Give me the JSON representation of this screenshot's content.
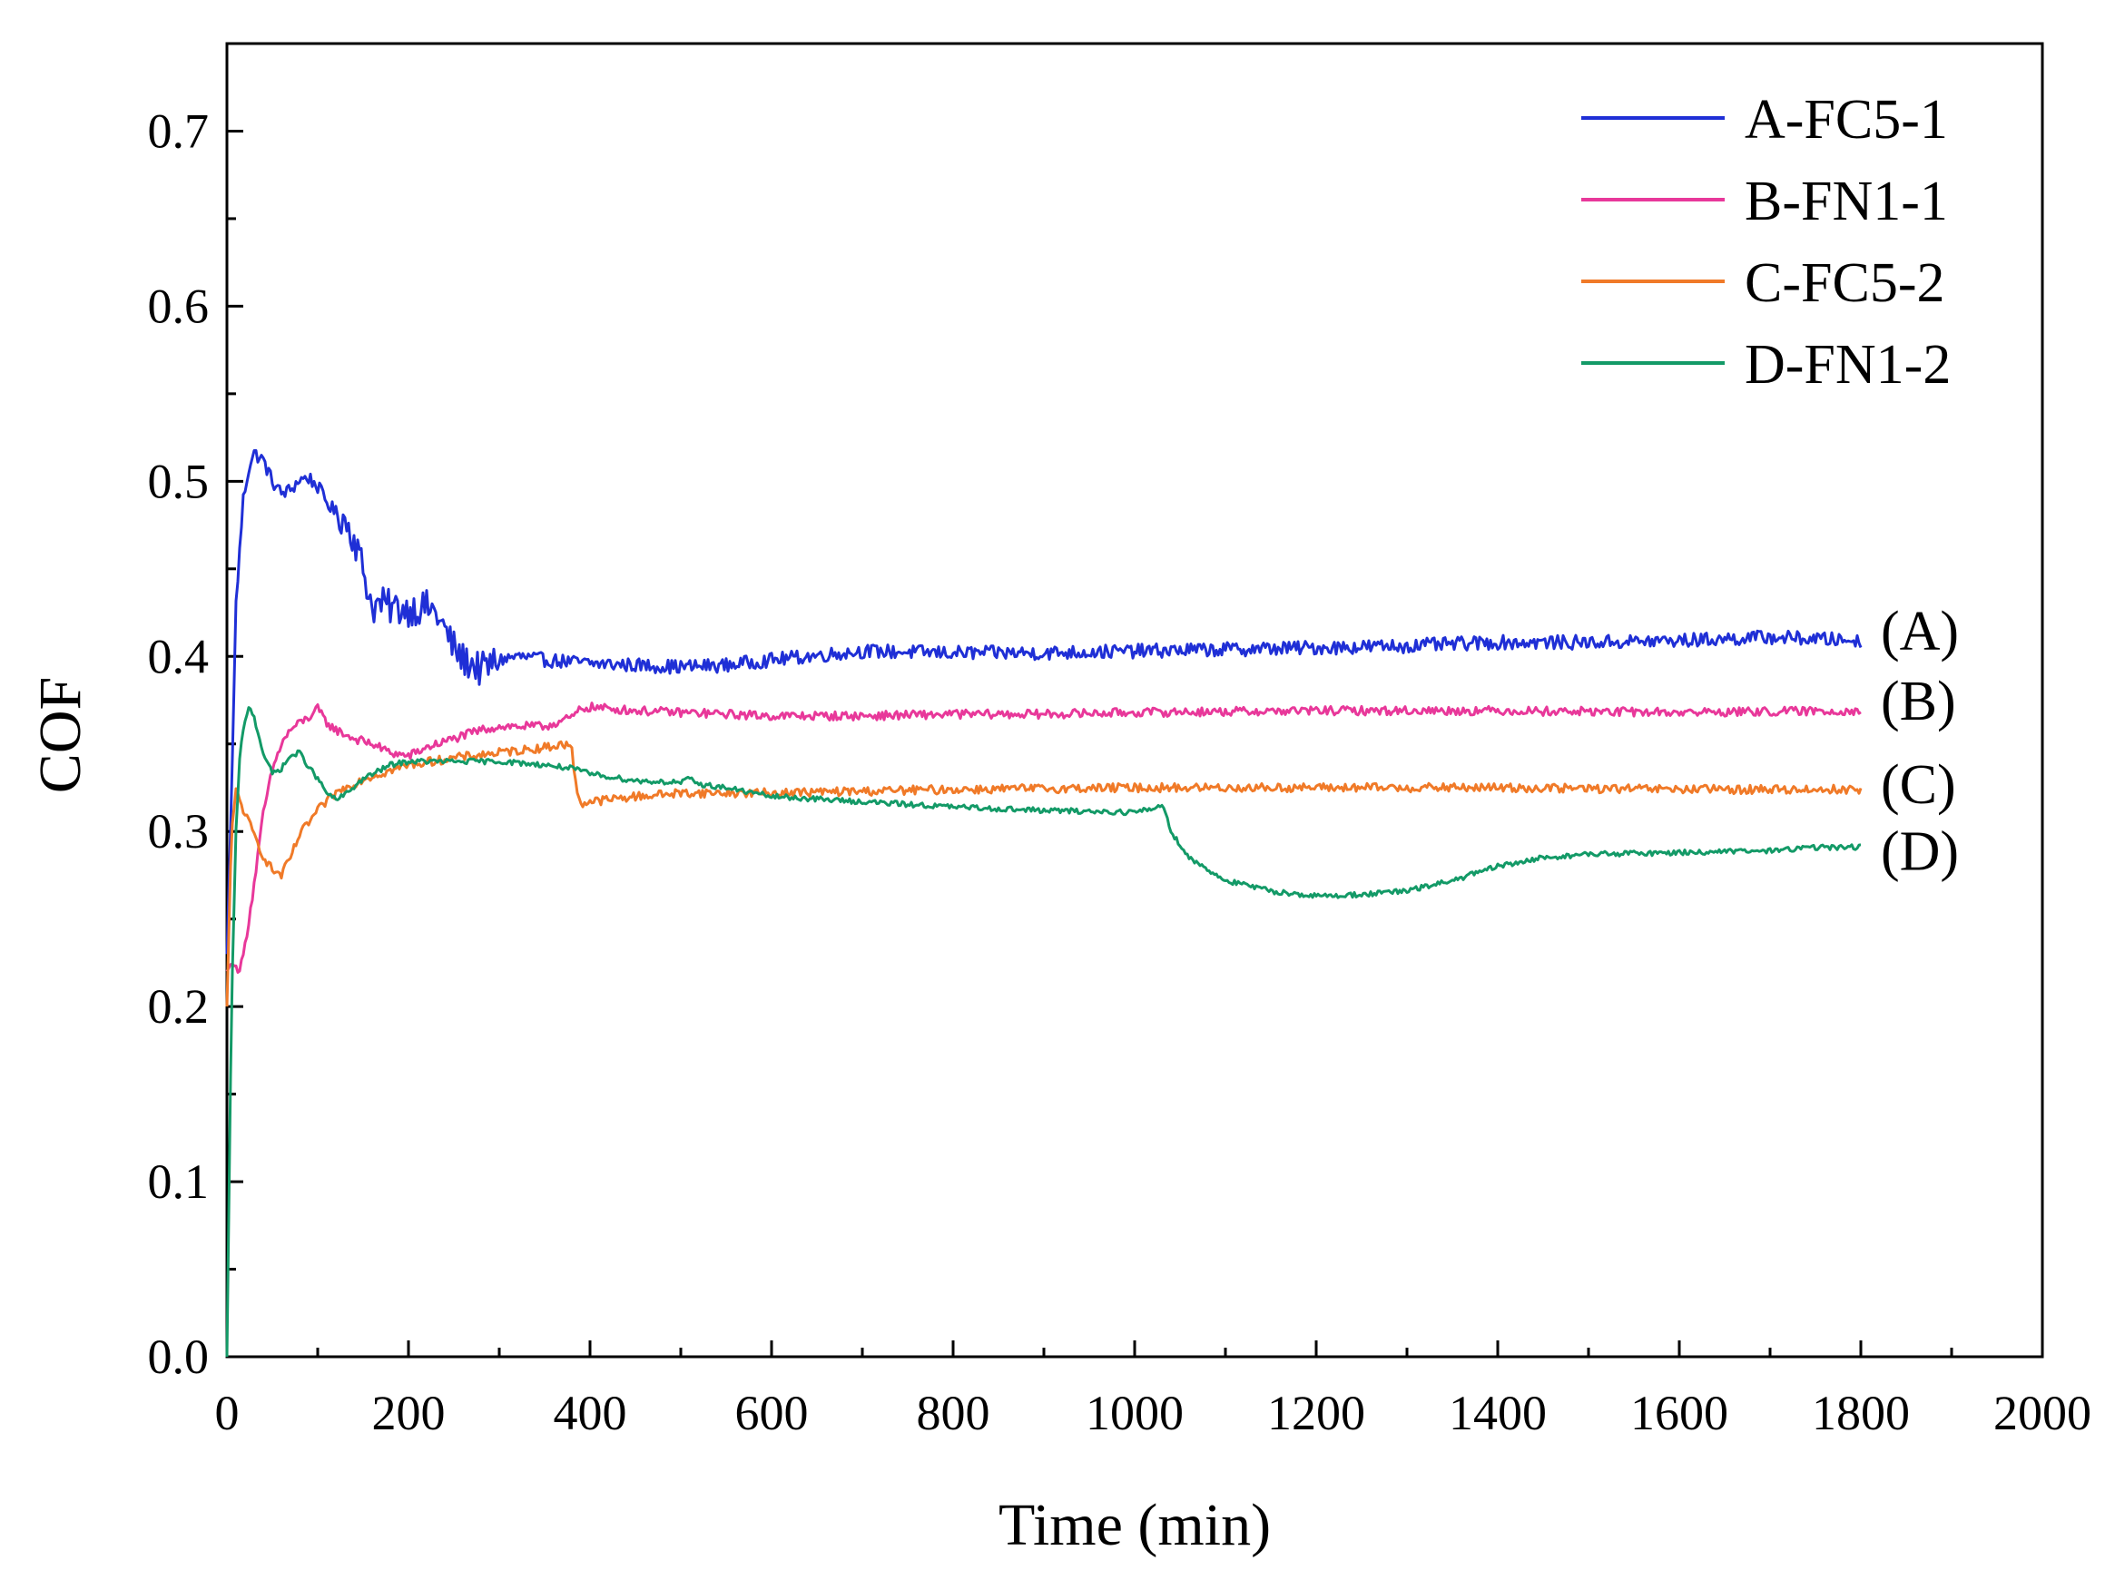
{
  "chart_data": {
    "type": "line",
    "title": "",
    "xlabel": "Time (min)",
    "ylabel": "COF",
    "xlim": [
      0,
      2000
    ],
    "ylim": [
      0,
      0.75
    ],
    "x_ticks": [
      0,
      200,
      400,
      600,
      800,
      1000,
      1200,
      1400,
      1600,
      1800,
      2000
    ],
    "x_tick_labels": [
      "0",
      "200",
      "400",
      "600",
      "800",
      "1000",
      "1200",
      "1400",
      "1600",
      "1800",
      "2000"
    ],
    "y_ticks": [
      0.0,
      0.1,
      0.2,
      0.3,
      0.4,
      0.5,
      0.6,
      0.7
    ],
    "y_tick_labels": [
      "0.0",
      "0.1",
      "0.2",
      "0.3",
      "0.4",
      "0.5",
      "0.6",
      "0.7"
    ],
    "grid": false,
    "legend_position": "top-right",
    "series": [
      {
        "name": "A-FC5-1",
        "end_label": "(A)",
        "color": "#1f2fd6",
        "noise": 0.004,
        "x": [
          0,
          5,
          10,
          18,
          25,
          30,
          40,
          50,
          60,
          70,
          80,
          90,
          100,
          110,
          120,
          130,
          140,
          150,
          160,
          170,
          180,
          200,
          220,
          230,
          240,
          250,
          260,
          270,
          280,
          290,
          300,
          320,
          350,
          400,
          450,
          500,
          550,
          600,
          700,
          800,
          900,
          1000,
          1100,
          1200,
          1300,
          1400,
          1500,
          1600,
          1700,
          1800
        ],
        "y": [
          0.23,
          0.32,
          0.43,
          0.49,
          0.51,
          0.516,
          0.512,
          0.5,
          0.493,
          0.495,
          0.501,
          0.502,
          0.497,
          0.488,
          0.482,
          0.478,
          0.468,
          0.45,
          0.428,
          0.43,
          0.428,
          0.427,
          0.428,
          0.425,
          0.415,
          0.405,
          0.398,
          0.396,
          0.392,
          0.395,
          0.398,
          0.4,
          0.398,
          0.396,
          0.395,
          0.394,
          0.395,
          0.398,
          0.403,
          0.402,
          0.402,
          0.403,
          0.404,
          0.405,
          0.406,
          0.408,
          0.408,
          0.409,
          0.411,
          0.409
        ]
      },
      {
        "name": "B-FN1-1",
        "end_label": "(B)",
        "color": "#e8389a",
        "noise": 0.0025,
        "x": [
          0,
          5,
          10,
          15,
          20,
          30,
          40,
          50,
          60,
          70,
          80,
          90,
          100,
          110,
          120,
          140,
          160,
          180,
          200,
          220,
          250,
          280,
          300,
          350,
          380,
          390,
          400,
          450,
          500,
          600,
          700,
          800,
          900,
          1000,
          1200,
          1400,
          1600,
          1800
        ],
        "y": [
          0.22,
          0.225,
          0.222,
          0.222,
          0.235,
          0.27,
          0.31,
          0.335,
          0.35,
          0.358,
          0.362,
          0.365,
          0.37,
          0.362,
          0.358,
          0.353,
          0.35,
          0.345,
          0.343,
          0.348,
          0.353,
          0.358,
          0.36,
          0.36,
          0.365,
          0.37,
          0.371,
          0.369,
          0.368,
          0.366,
          0.366,
          0.367,
          0.367,
          0.368,
          0.369,
          0.369,
          0.368,
          0.369
        ]
      },
      {
        "name": "C-FC5-2",
        "end_label": "(C)",
        "color": "#f07a28",
        "noise": 0.0025,
        "x": [
          0,
          5,
          10,
          20,
          30,
          40,
          50,
          60,
          70,
          80,
          100,
          120,
          150,
          200,
          250,
          300,
          350,
          375,
          380,
          385,
          390,
          400,
          450,
          500,
          600,
          700,
          800,
          1000,
          1200,
          1400,
          1600,
          1800
        ],
        "y": [
          0.2,
          0.3,
          0.323,
          0.31,
          0.298,
          0.286,
          0.278,
          0.275,
          0.285,
          0.298,
          0.312,
          0.322,
          0.33,
          0.338,
          0.342,
          0.345,
          0.348,
          0.35,
          0.346,
          0.325,
          0.316,
          0.317,
          0.32,
          0.322,
          0.322,
          0.323,
          0.324,
          0.325,
          0.325,
          0.325,
          0.324,
          0.324
        ]
      },
      {
        "name": "D-FN1-2",
        "end_label": "(D)",
        "color": "#139a67",
        "noise": 0.0015,
        "x": [
          0,
          5,
          10,
          15,
          20,
          25,
          30,
          40,
          50,
          60,
          70,
          80,
          90,
          100,
          110,
          120,
          130,
          150,
          180,
          200,
          250,
          300,
          350,
          380,
          400,
          450,
          500,
          510,
          520,
          550,
          600,
          700,
          800,
          900,
          1000,
          1020,
          1030,
          1035,
          1040,
          1060,
          1100,
          1150,
          1200,
          1250,
          1300,
          1350,
          1400,
          1450,
          1500,
          1600,
          1700,
          1750,
          1800
        ],
        "y": [
          0.0,
          0.2,
          0.3,
          0.35,
          0.362,
          0.372,
          0.365,
          0.345,
          0.333,
          0.336,
          0.343,
          0.345,
          0.337,
          0.33,
          0.322,
          0.318,
          0.321,
          0.33,
          0.338,
          0.34,
          0.34,
          0.34,
          0.338,
          0.336,
          0.333,
          0.329,
          0.328,
          0.33,
          0.327,
          0.325,
          0.32,
          0.317,
          0.314,
          0.312,
          0.311,
          0.313,
          0.315,
          0.31,
          0.3,
          0.285,
          0.272,
          0.266,
          0.263,
          0.264,
          0.266,
          0.272,
          0.28,
          0.285,
          0.287,
          0.288,
          0.289,
          0.291,
          0.291
        ]
      }
    ]
  }
}
